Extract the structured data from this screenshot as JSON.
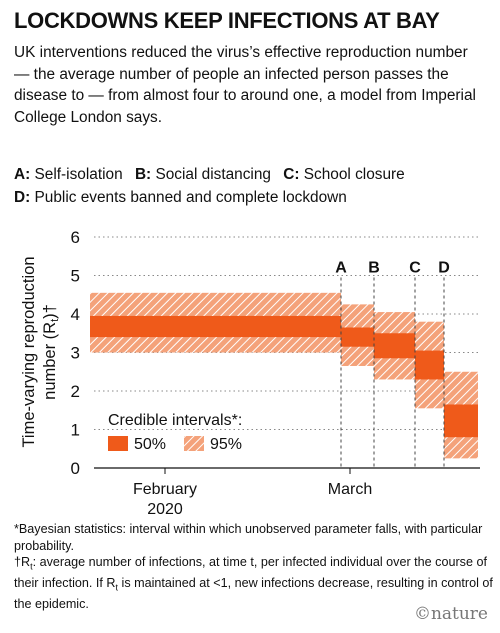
{
  "header": {
    "title": "LOCKDOWNS KEEP INFECTIONS AT BAY",
    "subtitle": "UK interventions reduced the virus’s effective reproduction number — the average number of people an infected person passes the disease to — from almost four to around one, a model from Imperial College London says."
  },
  "key": {
    "a_letter": "A:",
    "a_text": "Self-isolation",
    "b_letter": "B:",
    "b_text": "Social distancing",
    "c_letter": "C:",
    "c_text": "School closure",
    "d_letter": "D:",
    "d_text": "Public events banned and complete lockdown"
  },
  "colors": {
    "band50": "#ef5a1a",
    "band95": "#f4a27a",
    "hatch": "#ffffff",
    "grid": "#888888"
  },
  "chart_data": {
    "type": "area",
    "ylabel": "Time-varying reproduction number (Rt)†",
    "ylabel_line1": "Time-varying reproduction",
    "ylabel_line2": "number (R",
    "ylabel_sub": "t",
    "ylabel_end": ")†",
    "yticks": [
      0,
      1,
      2,
      3,
      4,
      5,
      6
    ],
    "ylim": [
      0,
      6
    ],
    "xticks": [
      {
        "label": "February",
        "label2": "2020"
      },
      {
        "label": "March",
        "label2": ""
      }
    ],
    "interventions": [
      "A",
      "B",
      "C",
      "D"
    ],
    "segments": [
      {
        "period": "to A",
        "ci50": [
          3.4,
          3.95
        ],
        "ci95": [
          3.0,
          4.55
        ]
      },
      {
        "period": "A–B",
        "ci50": [
          3.15,
          3.65
        ],
        "ci95": [
          2.65,
          4.25
        ]
      },
      {
        "period": "B–C",
        "ci50": [
          2.85,
          3.5
        ],
        "ci95": [
          2.3,
          4.05
        ]
      },
      {
        "period": "C–D",
        "ci50": [
          2.3,
          3.05
        ],
        "ci95": [
          1.55,
          3.8
        ]
      },
      {
        "period": "after D",
        "ci50": [
          0.8,
          1.65
        ],
        "ci95": [
          0.25,
          2.5
        ]
      }
    ],
    "legend_title": "Credible intervals*:",
    "legend_items": [
      "50%",
      "95%"
    ],
    "grid": true
  },
  "notes": {
    "n1": "*Bayesian statistics: interval within which unobserved parameter falls, with particular probability.",
    "n2a": "†R",
    "n2sub": "t",
    "n2b": ": average number of infections, at time t, per infected individual over the course of their infection. If R",
    "n2sub2": "t",
    "n2c": " is maintained at <1, new infections decrease, resulting in control of the epidemic."
  },
  "credit": "©nature"
}
